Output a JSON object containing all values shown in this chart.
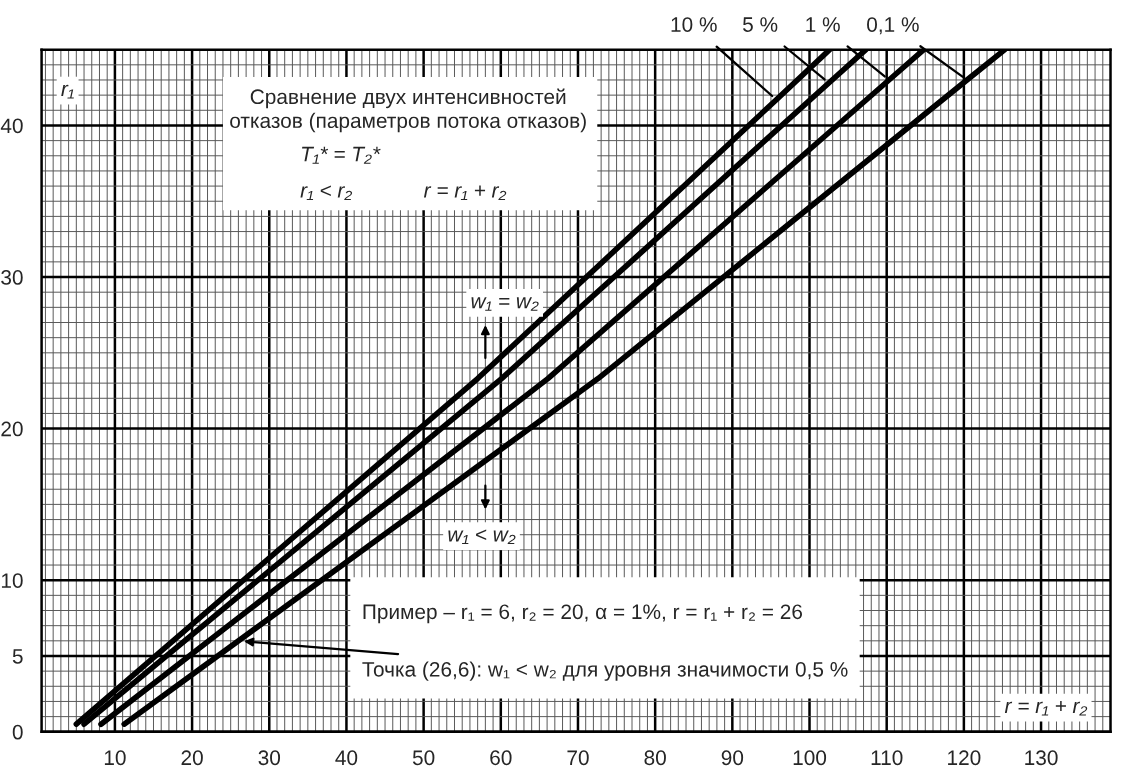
{
  "chart_data": {
    "type": "line",
    "xlabel": "r = r₁ + r₂",
    "ylabel": "r₁",
    "xlim": [
      0.5,
      139
    ],
    "ylim": [
      0,
      45
    ],
    "xticks": [
      10,
      20,
      30,
      40,
      50,
      60,
      70,
      80,
      90,
      100,
      110,
      120,
      130
    ],
    "yticks": [
      0,
      5,
      10,
      20,
      30,
      40
    ],
    "grid": true,
    "legend": false,
    "marker": "none",
    "line_style": "solid",
    "series": [
      {
        "name": "10 %",
        "color": "#000000",
        "x": [
          5.0,
          57.0,
          95.7,
          102.6
        ],
        "values": [
          0.5,
          23.3,
          41.7,
          45
        ]
      },
      {
        "name": "5 %",
        "color": "#000000",
        "x": [
          6.0,
          60.1,
          102.5,
          107.3
        ],
        "values": [
          0.5,
          23.3,
          42.8,
          45
        ]
      },
      {
        "name": "1 %",
        "color": "#000000",
        "x": [
          8.2,
          66.1,
          110.3,
          114.8
        ],
        "values": [
          0.5,
          23.3,
          43,
          45
        ]
      },
      {
        "name": "0,1 %",
        "color": "#000000",
        "x": [
          11.2,
          72.6,
          120.4,
          125.3
        ],
        "values": [
          0.5,
          23.3,
          43,
          45
        ]
      }
    ],
    "annotations": [
      "Сравнение двух интенсивностей\nотказов (параметров потока отказов)",
      "T₁* = T₂*",
      "r₁ < r₂",
      "r = r₁ + r₂",
      "w₁ = w₂",
      "w₁ < w₂",
      "Пример – r₁ = 6, r₂ = 20, α = 1%, r = r₁ + r₂ = 26",
      {
        "text": "Точка (26,6): w₁ < w₂ для уровня значимости 0,5 %",
        "x": 26,
        "y": 6
      }
    ]
  }
}
